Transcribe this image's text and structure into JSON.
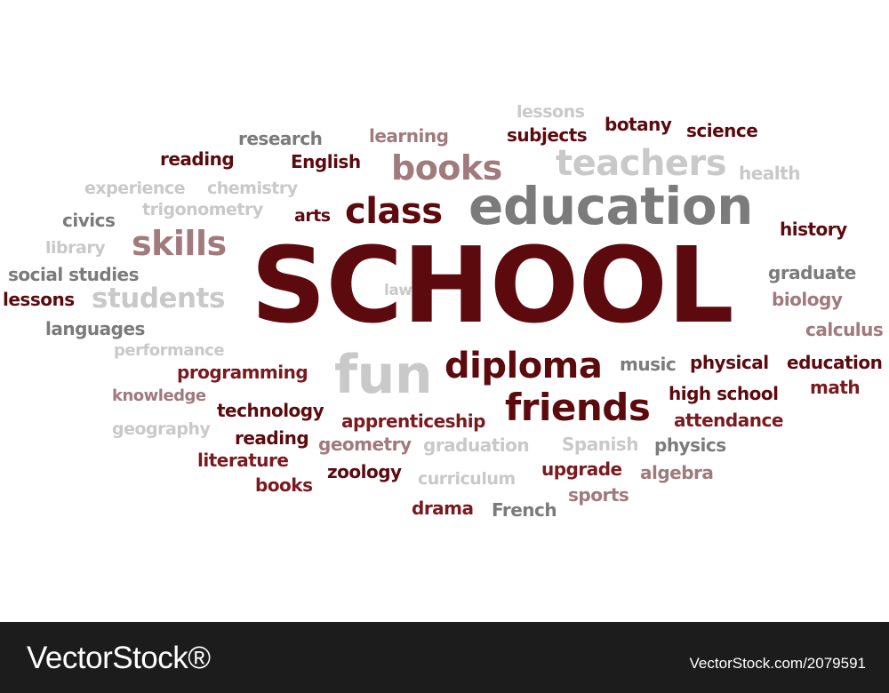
{
  "colors": {
    "maroon": "#5c0a0e",
    "dark_red": "#7a1a1e",
    "rose": "#a07a7c",
    "gray": "#7b7b7b",
    "light_gray": "#c9c9c9",
    "footer_bg": "#1c1c1c"
  },
  "words": [
    {
      "text": "SCHOOL",
      "tone": "maroon"
    },
    {
      "text": "education",
      "tone": "gray"
    },
    {
      "text": "teachers",
      "tone": "light_gray"
    },
    {
      "text": "books",
      "tone": "rose"
    },
    {
      "text": "class",
      "tone": "maroon"
    },
    {
      "text": "skills",
      "tone": "rose"
    },
    {
      "text": "fun",
      "tone": "light_gray"
    },
    {
      "text": "diploma",
      "tone": "maroon"
    },
    {
      "text": "friends",
      "tone": "maroon"
    },
    {
      "text": "students",
      "tone": "light_gray"
    },
    {
      "text": "lessons",
      "tone": "light_gray"
    },
    {
      "text": "botany",
      "tone": "maroon"
    },
    {
      "text": "science",
      "tone": "maroon"
    },
    {
      "text": "research",
      "tone": "gray"
    },
    {
      "text": "learning",
      "tone": "rose"
    },
    {
      "text": "subjects",
      "tone": "maroon"
    },
    {
      "text": "reading",
      "tone": "maroon"
    },
    {
      "text": "English",
      "tone": "maroon"
    },
    {
      "text": "health",
      "tone": "light_gray"
    },
    {
      "text": "experience",
      "tone": "light_gray"
    },
    {
      "text": "chemistry",
      "tone": "light_gray"
    },
    {
      "text": "trigonometry",
      "tone": "light_gray"
    },
    {
      "text": "arts",
      "tone": "maroon"
    },
    {
      "text": "civics",
      "tone": "gray"
    },
    {
      "text": "history",
      "tone": "maroon"
    },
    {
      "text": "library",
      "tone": "light_gray"
    },
    {
      "text": "social studies",
      "tone": "gray"
    },
    {
      "text": "graduate",
      "tone": "gray"
    },
    {
      "text": "lessons",
      "tone": "maroon"
    },
    {
      "text": "law",
      "tone": "light_gray"
    },
    {
      "text": "biology",
      "tone": "rose"
    },
    {
      "text": "languages",
      "tone": "gray"
    },
    {
      "text": "calculus",
      "tone": "rose"
    },
    {
      "text": "performance",
      "tone": "light_gray"
    },
    {
      "text": "programming",
      "tone": "dark_red"
    },
    {
      "text": "music",
      "tone": "gray"
    },
    {
      "text": "physical",
      "tone": "maroon"
    },
    {
      "text": "education",
      "tone": "maroon"
    },
    {
      "text": "knowledge",
      "tone": "rose"
    },
    {
      "text": "high school",
      "tone": "maroon"
    },
    {
      "text": "math",
      "tone": "dark_red"
    },
    {
      "text": "technology",
      "tone": "maroon"
    },
    {
      "text": "apprenticeship",
      "tone": "dark_red"
    },
    {
      "text": "attendance",
      "tone": "dark_red"
    },
    {
      "text": "geography",
      "tone": "light_gray"
    },
    {
      "text": "reading",
      "tone": "maroon"
    },
    {
      "text": "geometry",
      "tone": "rose"
    },
    {
      "text": "graduation",
      "tone": "light_gray"
    },
    {
      "text": "Spanish",
      "tone": "light_gray"
    },
    {
      "text": "physics",
      "tone": "gray"
    },
    {
      "text": "literature",
      "tone": "dark_red"
    },
    {
      "text": "zoology",
      "tone": "maroon"
    },
    {
      "text": "curriculum",
      "tone": "light_gray"
    },
    {
      "text": "upgrade",
      "tone": "dark_red"
    },
    {
      "text": "algebra",
      "tone": "rose"
    },
    {
      "text": "books",
      "tone": "dark_red"
    },
    {
      "text": "sports",
      "tone": "rose"
    },
    {
      "text": "drama",
      "tone": "dark_red"
    },
    {
      "text": "French",
      "tone": "gray"
    }
  ],
  "footer": {
    "brand": "VectorStock®",
    "image_id": "VectorStock.com/2079591"
  }
}
